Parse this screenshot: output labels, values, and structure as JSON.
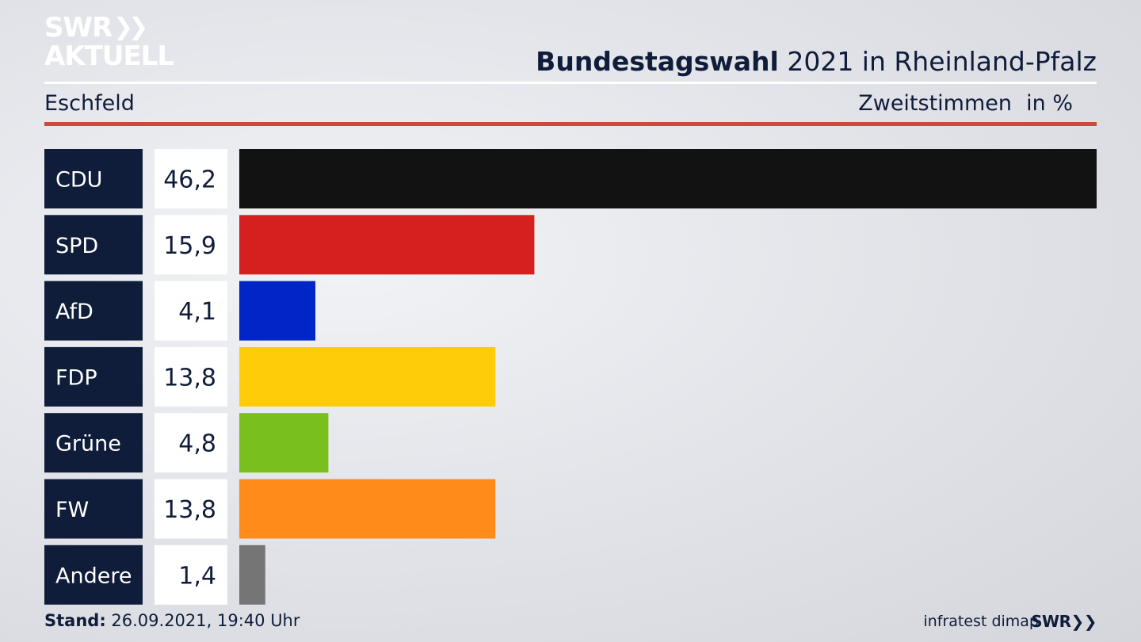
{
  "header": {
    "logo_line1": "SWR",
    "logo_line2": "AKTUELL",
    "title_bold": "Bundestagswahl",
    "title_rest": "2021 in Rheinland-Pfalz",
    "place": "Eschfeld",
    "vote_type": "Zweitstimmen",
    "unit": "in %"
  },
  "chart_data": {
    "type": "bar",
    "orientation": "horizontal",
    "categories": [
      "CDU",
      "SPD",
      "AfD",
      "FDP",
      "Grüne",
      "FW",
      "Andere"
    ],
    "values": [
      46.2,
      15.9,
      4.1,
      13.8,
      4.8,
      13.8,
      1.4
    ],
    "value_labels": [
      "46,2",
      "15,9",
      "4,1",
      "13,8",
      "4,8",
      "13,8",
      "1,4"
    ],
    "colors": [
      "#121212",
      "#d62020",
      "#0026c8",
      "#ffcc0a",
      "#79bf1e",
      "#ff8c18",
      "#757575"
    ],
    "label_box_color": "#0f1c3a",
    "xlim": [
      0,
      46.2
    ],
    "grid": false
  },
  "footer": {
    "stand_label": "Stand:",
    "stand_value": "26.09.2021, 19:40 Uhr",
    "source": "infratest dimap",
    "broadcaster": "SWR"
  }
}
